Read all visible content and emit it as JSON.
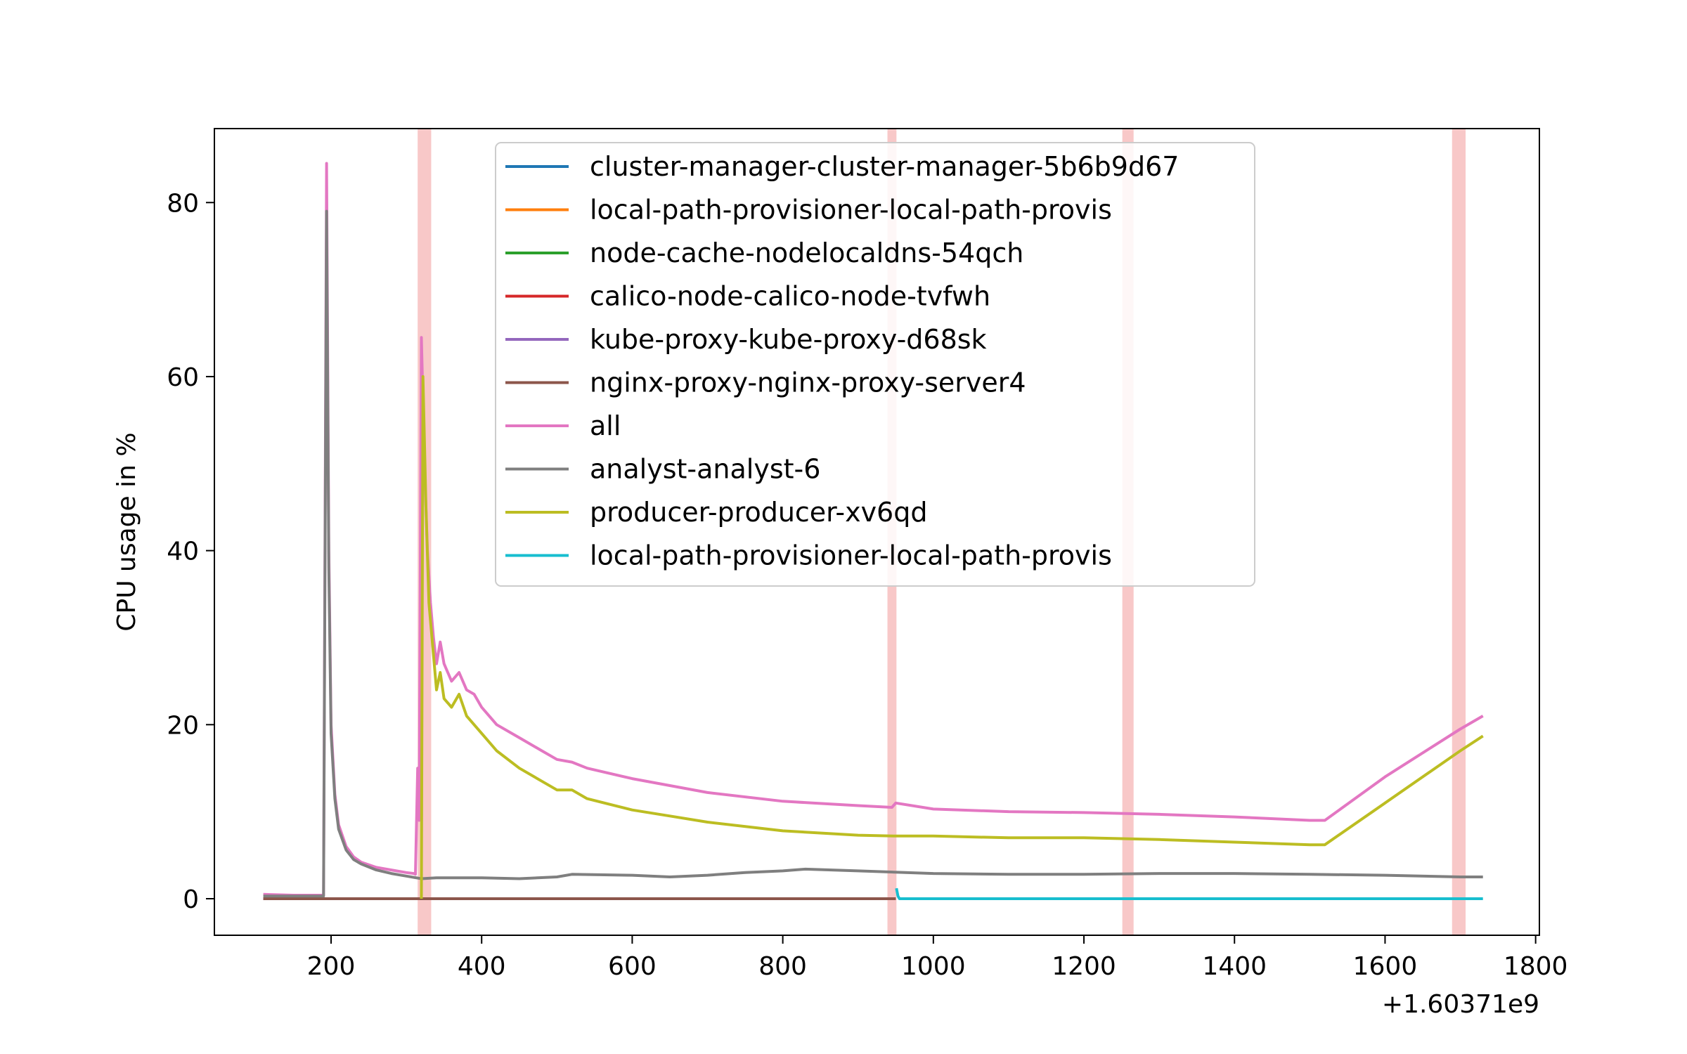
{
  "chart_data": {
    "type": "line",
    "title": "",
    "xlabel": "",
    "ylabel": "CPU usage in %",
    "x_offset_label": "+1.60371e9",
    "xlim": [
      45,
      1805
    ],
    "ylim": [
      -4.2,
      88.5
    ],
    "xticks": [
      200,
      400,
      600,
      800,
      1000,
      1200,
      1400,
      1600,
      1800
    ],
    "yticks": [
      0,
      20,
      40,
      60,
      80
    ],
    "grid": false,
    "legend_position": "top-center",
    "highlight_bands": [
      {
        "x": [
          315,
          333
        ],
        "color": "#f8c8c8"
      },
      {
        "x": [
          939,
          951
        ],
        "color": "#f8c8c8"
      },
      {
        "x": [
          1251,
          1266
        ],
        "color": "#f8c8c8"
      },
      {
        "x": [
          1689,
          1707
        ],
        "color": "#f8c8c8"
      }
    ],
    "series": [
      {
        "name": "cluster-manager-cluster-manager-5b6b9d67",
        "color": "#1f77b4",
        "points": [
          [
            110,
            0.0
          ],
          [
            950,
            0.0
          ]
        ]
      },
      {
        "name": "local-path-provisioner-local-path-provis",
        "color": "#ff7f0e",
        "points": [
          [
            110,
            0.0
          ],
          [
            950,
            0.0
          ]
        ]
      },
      {
        "name": "node-cache-nodelocaldns-54qch",
        "color": "#2ca02c",
        "points": [
          [
            110,
            0.0
          ],
          [
            950,
            0.0
          ]
        ]
      },
      {
        "name": "calico-node-calico-node-tvfwh",
        "color": "#d62728",
        "points": [
          [
            110,
            0.0
          ],
          [
            950,
            0.0
          ]
        ]
      },
      {
        "name": "kube-proxy-kube-proxy-d68sk",
        "color": "#9467bd",
        "points": [
          [
            110,
            0.0
          ],
          [
            950,
            0.0
          ]
        ]
      },
      {
        "name": "nginx-proxy-nginx-proxy-server4",
        "color": "#8c564b",
        "points": [
          [
            110,
            0.0
          ],
          [
            950,
            0.0
          ]
        ]
      },
      {
        "name": "all",
        "color": "#e377c2",
        "points": [
          [
            110,
            0.5
          ],
          [
            150,
            0.4
          ],
          [
            190,
            0.4
          ],
          [
            194,
            84.5
          ],
          [
            197,
            40
          ],
          [
            200,
            20
          ],
          [
            205,
            12
          ],
          [
            210,
            8.5
          ],
          [
            220,
            6
          ],
          [
            230,
            4.8
          ],
          [
            240,
            4.2
          ],
          [
            260,
            3.6
          ],
          [
            280,
            3.3
          ],
          [
            300,
            3.0
          ],
          [
            310,
            2.9
          ],
          [
            312,
            2.8
          ],
          [
            315,
            15.0
          ],
          [
            317,
            9.0
          ],
          [
            320,
            64.5
          ],
          [
            324,
            50
          ],
          [
            328,
            40
          ],
          [
            332,
            34
          ],
          [
            336,
            30
          ],
          [
            340,
            27
          ],
          [
            345,
            29.5
          ],
          [
            350,
            27
          ],
          [
            360,
            25
          ],
          [
            370,
            26
          ],
          [
            380,
            24
          ],
          [
            390,
            23.5
          ],
          [
            400,
            22
          ],
          [
            420,
            20
          ],
          [
            450,
            18.5
          ],
          [
            480,
            17
          ],
          [
            500,
            16
          ],
          [
            520,
            15.7
          ],
          [
            540,
            15
          ],
          [
            600,
            13.8
          ],
          [
            650,
            13
          ],
          [
            700,
            12.2
          ],
          [
            800,
            11.2
          ],
          [
            900,
            10.7
          ],
          [
            945,
            10.5
          ],
          [
            950,
            11.0
          ],
          [
            1000,
            10.3
          ],
          [
            1100,
            10.0
          ],
          [
            1200,
            9.9
          ],
          [
            1300,
            9.7
          ],
          [
            1400,
            9.4
          ],
          [
            1500,
            9.0
          ],
          [
            1520,
            9.0
          ],
          [
            1600,
            14.0
          ],
          [
            1700,
            19.5
          ],
          [
            1730,
            21.0
          ]
        ]
      },
      {
        "name": "analyst-analyst-6",
        "color": "#7f7f7f",
        "points": [
          [
            110,
            0.3
          ],
          [
            150,
            0.3
          ],
          [
            190,
            0.3
          ],
          [
            194,
            79
          ],
          [
            197,
            38
          ],
          [
            200,
            19
          ],
          [
            205,
            11.5
          ],
          [
            210,
            8
          ],
          [
            220,
            5.6
          ],
          [
            230,
            4.5
          ],
          [
            240,
            4.0
          ],
          [
            260,
            3.3
          ],
          [
            280,
            2.9
          ],
          [
            300,
            2.6
          ],
          [
            320,
            2.3
          ],
          [
            340,
            2.4
          ],
          [
            400,
            2.4
          ],
          [
            450,
            2.3
          ],
          [
            500,
            2.5
          ],
          [
            520,
            2.8
          ],
          [
            600,
            2.7
          ],
          [
            650,
            2.5
          ],
          [
            700,
            2.7
          ],
          [
            750,
            3.0
          ],
          [
            800,
            3.2
          ],
          [
            830,
            3.4
          ],
          [
            900,
            3.2
          ],
          [
            1000,
            2.9
          ],
          [
            1100,
            2.8
          ],
          [
            1200,
            2.8
          ],
          [
            1300,
            2.9
          ],
          [
            1400,
            2.9
          ],
          [
            1500,
            2.8
          ],
          [
            1600,
            2.7
          ],
          [
            1700,
            2.5
          ],
          [
            1730,
            2.5
          ]
        ]
      },
      {
        "name": "producer-producer-xv6qd",
        "color": "#bcbd22",
        "points": [
          [
            320,
            0.0
          ],
          [
            322,
            60.0
          ],
          [
            326,
            45
          ],
          [
            330,
            34
          ],
          [
            335,
            29
          ],
          [
            340,
            24
          ],
          [
            345,
            26
          ],
          [
            350,
            23
          ],
          [
            360,
            22
          ],
          [
            370,
            23.5
          ],
          [
            380,
            21
          ],
          [
            400,
            19
          ],
          [
            420,
            17
          ],
          [
            450,
            15
          ],
          [
            480,
            13.5
          ],
          [
            500,
            12.5
          ],
          [
            520,
            12.5
          ],
          [
            540,
            11.5
          ],
          [
            600,
            10.2
          ],
          [
            650,
            9.5
          ],
          [
            700,
            8.8
          ],
          [
            800,
            7.8
          ],
          [
            900,
            7.3
          ],
          [
            950,
            7.2
          ],
          [
            1000,
            7.2
          ],
          [
            1100,
            7.0
          ],
          [
            1200,
            7.0
          ],
          [
            1300,
            6.8
          ],
          [
            1400,
            6.5
          ],
          [
            1500,
            6.2
          ],
          [
            1520,
            6.2
          ],
          [
            1600,
            11.0
          ],
          [
            1700,
            17.0
          ],
          [
            1730,
            18.7
          ]
        ]
      },
      {
        "name": "local-path-provisioner-local-path-provis",
        "color": "#17becf",
        "points": [
          [
            951,
            1.2
          ],
          [
            953,
            0.3
          ],
          [
            955,
            0.0
          ],
          [
            1730,
            0.0
          ]
        ]
      }
    ]
  }
}
